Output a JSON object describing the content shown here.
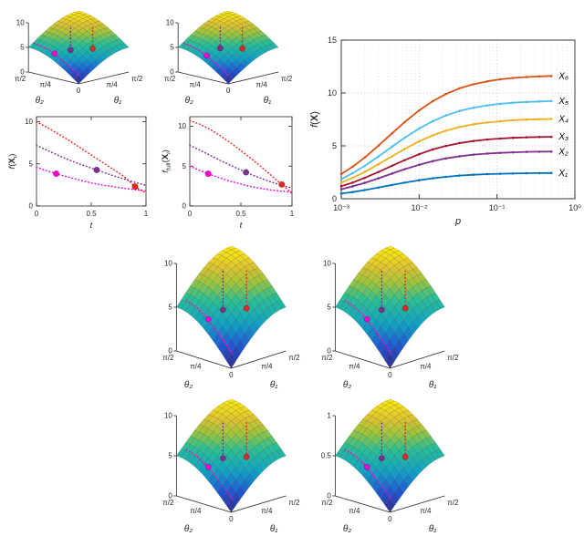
{
  "figure": {
    "background": "#ffffff",
    "description": "Multi-panel MATLAB-style figure: six 3D surface plots of f over (θ₁, θ₂) with dotted descent paths and markers, two line plots of f(Xᵢ) and f_full(Xᵢ) versus t, and one semilog-x plot of f(X) versus p for designs X₁–X₆."
  },
  "chart_data": [
    {
      "type": "surface3d",
      "name": "surface-top-left",
      "zmax": 10,
      "zticks": [
        0,
        5,
        10
      ],
      "zlim": [
        0,
        10
      ],
      "theta1_ticks": [
        "0",
        "π/4",
        "π/2"
      ],
      "theta2_ticks": [
        "0",
        "π/4",
        "π/2"
      ],
      "xlabel": "θ₁",
      "ylabel": "θ₂",
      "surface_model": "z ≈ zmax·(sin θ₁ + sin θ₂)/2 over [0,π/2]²",
      "stems": [
        {
          "color": "#e8261f",
          "t1": 0.5,
          "t2": 0.22
        },
        {
          "color": "#7e2f8e",
          "t1": 0.26,
          "t2": 0.42
        }
      ],
      "valley": {
        "color": "#ff00d4",
        "t1": 0.07,
        "t2_from": 0.95,
        "t2_to": 0.06,
        "marker_t2": 0.55
      }
    },
    {
      "type": "surface3d",
      "name": "surface-top-right",
      "zmax": 10,
      "zticks": [
        0,
        5,
        10
      ],
      "zlim": [
        0,
        10
      ],
      "theta1_ticks": [
        "0",
        "π/4",
        "π/2"
      ],
      "theta2_ticks": [
        "0",
        "π/4",
        "π/2"
      ],
      "xlabel": "θ₁",
      "ylabel": "θ₂",
      "surface_model": "z ≈ zmax·(sin θ₁ + sin θ₂)/2 over [0,π/2]²",
      "stems": [
        {
          "color": "#e8261f",
          "t1": 0.5,
          "t2": 0.22
        },
        {
          "color": "#7e2f8e",
          "t1": 0.28,
          "t2": 0.44
        }
      ],
      "valley": {
        "color": "#ff00d4",
        "t1": 0.07,
        "t2_from": 0.95,
        "t2_to": 0.06,
        "marker_t2": 0.5
      }
    },
    {
      "type": "line",
      "name": "line-f-vs-t",
      "ylabel_parts": [
        {
          "t": "f",
          "i": true
        },
        {
          "t": "("
        },
        {
          "t": "X",
          "b": true
        },
        {
          "t": "i",
          "sub": true,
          "i": true
        },
        {
          "t": ")"
        }
      ],
      "xlabel": "t",
      "xlim": [
        0,
        1
      ],
      "ylim": [
        0,
        10.6
      ],
      "xticks": [
        0,
        0.5,
        1
      ],
      "yticks": [
        0,
        5,
        10
      ],
      "x": [
        0,
        0.1,
        0.2,
        0.3,
        0.4,
        0.5,
        0.6,
        0.7,
        0.8,
        0.9,
        1
      ],
      "series": [
        {
          "name": "red-path",
          "color": "#e8261f",
          "y": [
            10,
            9.3,
            8.55,
            7.75,
            6.9,
            6.05,
            5.2,
            4.35,
            3.5,
            2.3,
            1.5
          ],
          "marker_x": 0.9
        },
        {
          "name": "purple-path",
          "color": "#7e2f8e",
          "y": [
            7.2,
            6.6,
            6.0,
            5.45,
            4.95,
            4.5,
            4.05,
            3.6,
            3.2,
            2.8,
            2.45
          ],
          "marker_x": 0.55
        },
        {
          "name": "magenta-path",
          "color": "#ff00d4",
          "y": [
            4.6,
            4.15,
            3.75,
            3.4,
            3.05,
            2.75,
            2.5,
            2.3,
            2.1,
            1.95,
            1.8
          ],
          "marker_x": 0.18
        }
      ]
    },
    {
      "type": "line",
      "name": "line-ffull-vs-t",
      "ylabel_parts": [
        {
          "t": "f",
          "i": true
        },
        {
          "t": "full",
          "sub": true
        },
        {
          "t": "("
        },
        {
          "t": "X",
          "b": true
        },
        {
          "t": "i",
          "sub": true,
          "i": true
        },
        {
          "t": ")"
        }
      ],
      "xlabel": "t",
      "xlim": [
        0,
        1
      ],
      "ylim": [
        0,
        11.2
      ],
      "xticks": [
        0,
        0.5,
        1
      ],
      "yticks": [
        0,
        5,
        10
      ],
      "x": [
        0,
        0.1,
        0.2,
        0.3,
        0.4,
        0.5,
        0.6,
        0.7,
        0.8,
        0.9,
        1
      ],
      "series": [
        {
          "name": "red-path",
          "color": "#e8261f",
          "y": [
            10.7,
            10.25,
            9.6,
            8.8,
            7.9,
            6.95,
            5.95,
            4.9,
            3.8,
            2.7,
            1.6
          ],
          "marker_x": 0.9
        },
        {
          "name": "purple-path",
          "color": "#7e2f8e",
          "y": [
            7.6,
            7.0,
            6.35,
            5.7,
            5.1,
            4.5,
            3.95,
            3.45,
            3.0,
            2.6,
            2.25
          ],
          "marker_x": 0.55
        },
        {
          "name": "magenta-path",
          "color": "#ff00d4",
          "y": [
            5.0,
            4.45,
            3.95,
            3.5,
            3.1,
            2.75,
            2.45,
            2.2,
            2.0,
            1.85,
            1.75
          ],
          "marker_x": 0.18
        }
      ]
    },
    {
      "type": "semilogx",
      "name": "f-vs-p",
      "ylabel_parts": [
        {
          "t": "f",
          "i": true
        },
        {
          "t": "("
        },
        {
          "t": "X",
          "b": true
        },
        {
          "t": ")"
        }
      ],
      "xlabel": "p",
      "xlim": [
        0.001,
        1
      ],
      "ylim": [
        0,
        15
      ],
      "yticks": [
        0,
        5,
        10,
        15
      ],
      "xtick_labels": [
        "10⁻³",
        "10⁻²",
        "10⁻¹",
        "10⁰"
      ],
      "grid": true,
      "x": [
        0.001,
        0.0014,
        0.002,
        0.003,
        0.0045,
        0.0065,
        0.01,
        0.015,
        0.022,
        0.033,
        0.05,
        0.075,
        0.11,
        0.16,
        0.24,
        0.35,
        0.5
      ],
      "series": [
        {
          "label": "X₁",
          "color": "#0072bd",
          "y": [
            0.49,
            0.63,
            0.82,
            1.05,
            1.3,
            1.52,
            1.75,
            1.93,
            2.07,
            2.19,
            2.27,
            2.33,
            2.36,
            2.39,
            2.41,
            2.42,
            2.43
          ]
        },
        {
          "label": "X₂",
          "color": "#7e2f8e",
          "y": [
            0.9,
            1.17,
            1.5,
            1.93,
            2.38,
            2.79,
            3.21,
            3.55,
            3.81,
            4.01,
            4.17,
            4.27,
            4.34,
            4.39,
            4.43,
            4.45,
            4.46
          ]
        },
        {
          "label": "X₃",
          "color": "#a2142f",
          "y": [
            1.18,
            1.53,
            1.97,
            2.53,
            3.12,
            3.65,
            4.21,
            4.66,
            4.99,
            5.26,
            5.46,
            5.6,
            5.69,
            5.76,
            5.81,
            5.84,
            5.85
          ]
        },
        {
          "label": "X₄",
          "color": "#edb120",
          "y": [
            1.52,
            1.97,
            2.53,
            3.26,
            4.02,
            4.7,
            5.43,
            6.0,
            6.43,
            6.78,
            7.04,
            7.21,
            7.33,
            7.42,
            7.48,
            7.52,
            7.54
          ]
        },
        {
          "label": "X₅",
          "color": "#4dbeee",
          "y": [
            1.86,
            2.41,
            3.1,
            3.99,
            4.92,
            5.76,
            6.64,
            7.34,
            7.87,
            8.3,
            8.61,
            8.83,
            8.97,
            9.08,
            9.15,
            9.2,
            9.23
          ]
        },
        {
          "label": "X₆",
          "color": "#d95319",
          "y": [
            2.34,
            3.03,
            3.9,
            5.02,
            6.19,
            7.24,
            8.35,
            9.23,
            9.9,
            10.44,
            10.83,
            11.1,
            11.29,
            11.42,
            11.51,
            11.57,
            11.61
          ]
        }
      ]
    },
    {
      "type": "surface3d",
      "name": "surface-mid-left",
      "zmax": 10,
      "zticks": [
        0,
        5,
        10
      ],
      "zlim": [
        0,
        10
      ],
      "theta1_ticks": [
        "0",
        "π/4",
        "π/2"
      ],
      "theta2_ticks": [
        "0",
        "π/4",
        "π/2"
      ],
      "xlabel": "θ₁",
      "ylabel": "θ₂",
      "surface_model": "z ≈ zmax·(sin θ₁ + sin θ₂)/2 over [0,π/2]²",
      "stems": [
        {
          "color": "#e8261f",
          "t1": 0.5,
          "t2": 0.22
        },
        {
          "color": "#7e2f8e",
          "t1": 0.27,
          "t2": 0.42
        }
      ],
      "valley": {
        "color": "#ff00d4",
        "t1": 0.08,
        "t2_from": 0.9,
        "t2_to": 0.06,
        "marker_t2": 0.5
      }
    },
    {
      "type": "surface3d",
      "name": "surface-mid-right",
      "zmax": 10,
      "zticks": [
        0,
        5,
        10
      ],
      "zlim": [
        0,
        10
      ],
      "theta1_ticks": [
        "0",
        "π/4",
        "π/2"
      ],
      "theta2_ticks": [
        "0",
        "π/4",
        "π/2"
      ],
      "xlabel": "θ₁",
      "ylabel": "θ₂",
      "surface_model": "z ≈ zmax·(sin θ₁ + sin θ₂)/2 over [0,π/2]²",
      "stems": [
        {
          "color": "#e8261f",
          "t1": 0.5,
          "t2": 0.22
        },
        {
          "color": "#7e2f8e",
          "t1": 0.27,
          "t2": 0.42
        }
      ],
      "valley": {
        "color": "#ff00d4",
        "t1": 0.08,
        "t2_from": 0.9,
        "t2_to": 0.06,
        "marker_t2": 0.5
      }
    },
    {
      "type": "surface3d",
      "name": "surface-bottom-left",
      "zmax": 10,
      "zticks": [
        0,
        5,
        10
      ],
      "zlim": [
        0,
        10
      ],
      "theta1_ticks": [
        "0",
        "π/4",
        "π/2"
      ],
      "theta2_ticks": [
        "0",
        "π/4",
        "π/2"
      ],
      "xlabel": "θ₁",
      "ylabel": "θ₂",
      "surface_model": "z ≈ zmax·(sin θ₁ + sin θ₂)/2 over [0,π/2]²",
      "stems": [
        {
          "color": "#e8261f",
          "t1": 0.5,
          "t2": 0.22
        },
        {
          "color": "#7e2f8e",
          "t1": 0.27,
          "t2": 0.42
        }
      ],
      "valley": {
        "color": "#ff00d4",
        "t1": 0.08,
        "t2_from": 0.9,
        "t2_to": 0.06,
        "marker_t2": 0.5
      }
    },
    {
      "type": "surface3d",
      "name": "surface-bottom-right",
      "zmax": 1,
      "zticks": [
        0,
        0.5,
        1
      ],
      "zlim": [
        0,
        1
      ],
      "theta1_ticks": [
        "0",
        "π/4",
        "π/2"
      ],
      "theta2_ticks": [
        "0",
        "π/4",
        "π/2"
      ],
      "xlabel": "θ₁",
      "ylabel": "θ₂",
      "surface_model": "z ≈ zmax·(sin θ₁ + sin θ₂)/2 over [0,π/2]²",
      "stems": [
        {
          "color": "#e8261f",
          "t1": 0.5,
          "t2": 0.22
        },
        {
          "color": "#7e2f8e",
          "t1": 0.27,
          "t2": 0.42
        }
      ],
      "valley": {
        "color": "#ff00d4",
        "t1": 0.08,
        "t2_from": 0.9,
        "t2_to": 0.06,
        "marker_t2": 0.5
      }
    }
  ]
}
